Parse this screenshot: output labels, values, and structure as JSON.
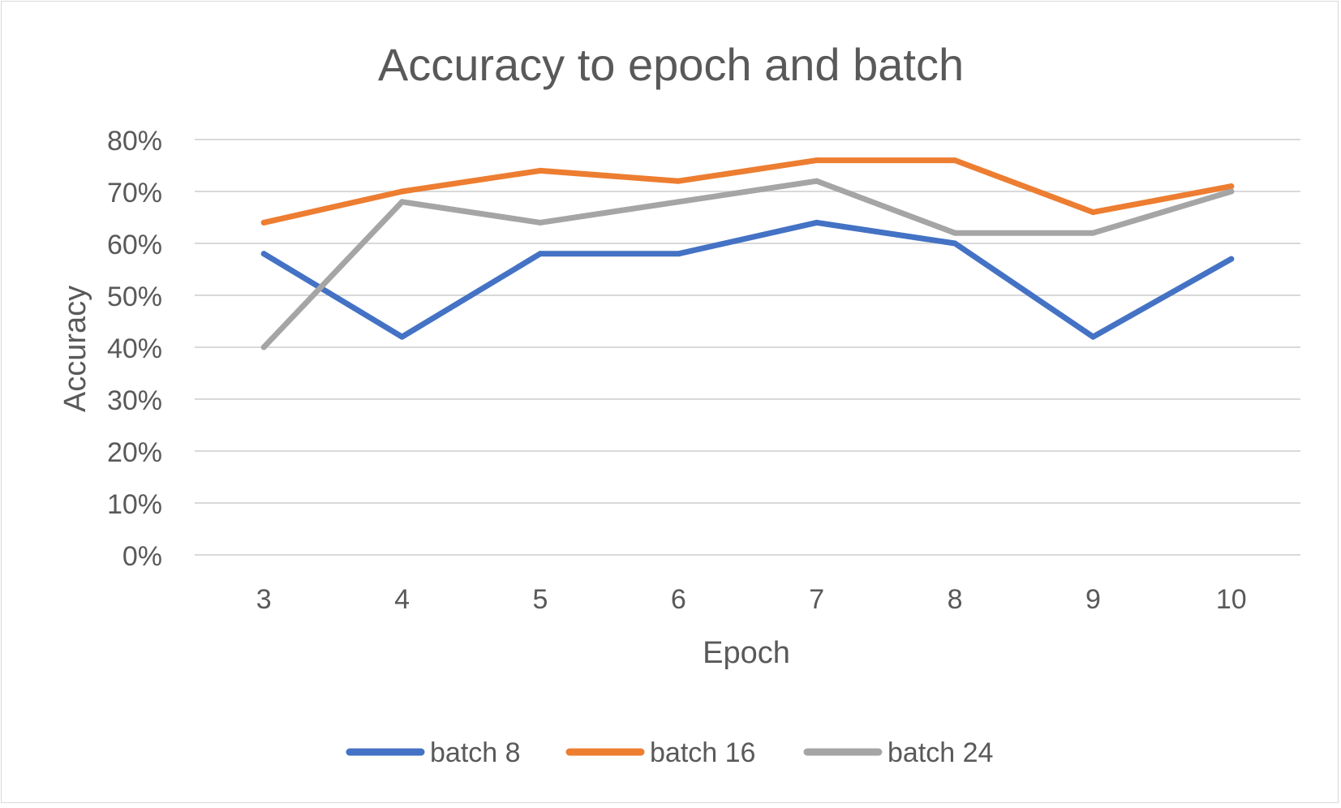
{
  "chart_data": {
    "type": "line",
    "title": "Accuracy to epoch and batch",
    "xlabel": "Epoch",
    "ylabel": "Accuracy",
    "categories": [
      "3",
      "4",
      "5",
      "6",
      "7",
      "8",
      "9",
      "10"
    ],
    "ylim": [
      0,
      0.8
    ],
    "yticks": [
      "0%",
      "10%",
      "20%",
      "30%",
      "40%",
      "50%",
      "60%",
      "70%",
      "80%"
    ],
    "grid": true,
    "legend_position": "bottom",
    "series": [
      {
        "name": "batch 8",
        "color": "#4472c4",
        "values": [
          0.58,
          0.42,
          0.58,
          0.58,
          0.64,
          0.6,
          0.42,
          0.57
        ]
      },
      {
        "name": "batch 16",
        "color": "#ed7d31",
        "values": [
          0.64,
          0.7,
          0.74,
          0.72,
          0.76,
          0.76,
          0.66,
          0.71
        ]
      },
      {
        "name": "batch 24",
        "color": "#a5a5a5",
        "values": [
          0.4,
          0.68,
          0.64,
          0.68,
          0.72,
          0.62,
          0.62,
          0.7
        ]
      }
    ]
  }
}
